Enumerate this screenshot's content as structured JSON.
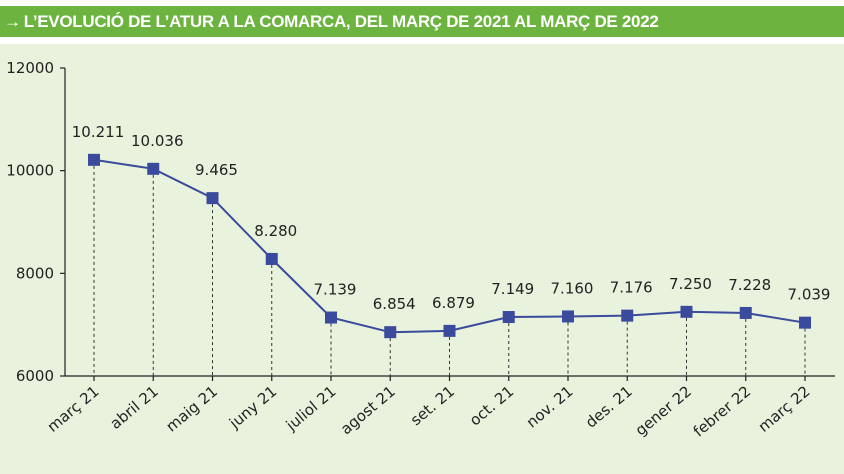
{
  "colors": {
    "title_bar": "#6db33f",
    "plot_bg": "#e8f2dc",
    "line": "#3a4a9c",
    "marker": "#3a4a9c",
    "axis": "#222222",
    "dotted": "#333333"
  },
  "title": {
    "arrow": "→",
    "text": "L’EVOLUCIÓ DE L’ATUR A LA COMARCA, DEL MARÇ DE 2021 AL MARÇ DE 2022"
  },
  "chart_data": {
    "type": "line",
    "title": "L’EVOLUCIÓ DE L’ATUR A LA COMARCA, DEL MARÇ DE 2021 AL MARÇ DE 2022",
    "xlabel": "",
    "ylabel": "",
    "ylim": [
      6000,
      12000
    ],
    "yticks": [
      6000,
      8000,
      10000,
      12000
    ],
    "ytick_labels": [
      "6000",
      "8000",
      "10000",
      "12000"
    ],
    "grid": false,
    "categories": [
      "març 21",
      "abril 21",
      "maig 21",
      "juny 21",
      "juliol 21",
      "agost 21",
      "set. 21",
      "oct. 21",
      "nov. 21",
      "des. 21",
      "gener 22",
      "febrer 22",
      "març 22"
    ],
    "values": [
      10211,
      10036,
      9465,
      8280,
      7139,
      6854,
      6879,
      7149,
      7160,
      7176,
      7250,
      7228,
      7039
    ],
    "data_labels": [
      "10.211",
      "10.036",
      "9.465",
      "8.280",
      "7.139",
      "6.854",
      "6.879",
      "7.149",
      "7.160",
      "7.176",
      "7.250",
      "7.228",
      "7.039"
    ]
  }
}
